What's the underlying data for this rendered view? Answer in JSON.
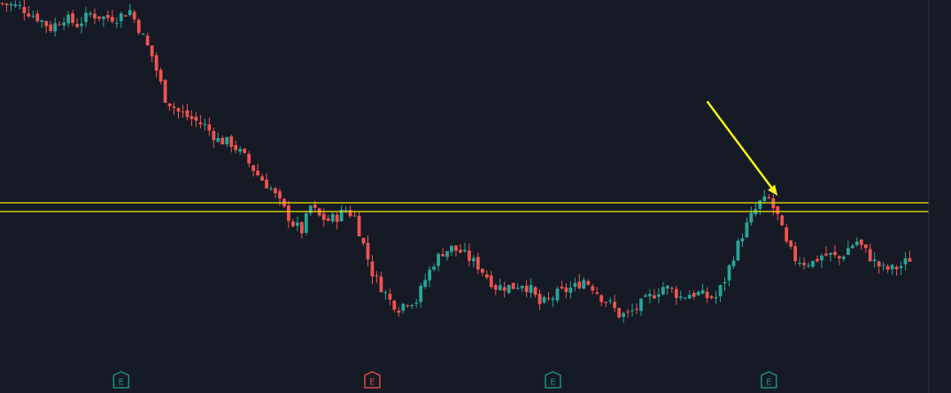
{
  "chart_data": {
    "type": "candlestick",
    "title": "",
    "xlabel": "",
    "ylabel": "",
    "grid": false,
    "y_range": [
      0,
      100
    ],
    "colors": {
      "up": "#26a69a",
      "down": "#ef5350",
      "background": "#161a25",
      "level_line": "#f2e60a",
      "arrow": "#f7f712",
      "earnings_positive": "#1e8c7c",
      "earnings_negative": "#d64a45",
      "right_border": "#2a2e39"
    },
    "price_waypoints": [
      [
        0,
        99
      ],
      [
        4,
        98
      ],
      [
        8,
        95
      ],
      [
        11,
        92
      ],
      [
        14,
        95
      ],
      [
        17,
        93
      ],
      [
        20,
        96
      ],
      [
        23,
        95
      ],
      [
        26,
        95
      ],
      [
        29,
        97
      ],
      [
        31,
        92
      ],
      [
        34,
        84
      ],
      [
        37,
        72
      ],
      [
        40,
        68
      ],
      [
        43,
        66
      ],
      [
        46,
        64
      ],
      [
        49,
        60
      ],
      [
        52,
        59
      ],
      [
        55,
        55
      ],
      [
        58,
        50
      ],
      [
        61,
        46
      ],
      [
        64,
        40
      ],
      [
        66,
        36
      ],
      [
        68,
        34
      ],
      [
        70,
        41
      ],
      [
        72,
        38
      ],
      [
        74,
        37
      ],
      [
        76,
        38
      ],
      [
        78,
        40
      ],
      [
        80,
        38
      ],
      [
        82,
        30
      ],
      [
        84,
        22
      ],
      [
        86,
        18
      ],
      [
        88,
        14
      ],
      [
        90,
        12
      ],
      [
        92,
        14
      ],
      [
        94,
        14
      ],
      [
        96,
        20
      ],
      [
        98,
        25
      ],
      [
        100,
        28
      ],
      [
        102,
        29
      ],
      [
        104,
        28
      ],
      [
        106,
        26
      ],
      [
        108,
        24
      ],
      [
        110,
        21
      ],
      [
        112,
        18
      ],
      [
        114,
        18
      ],
      [
        116,
        18
      ],
      [
        118,
        19
      ],
      [
        120,
        17
      ],
      [
        122,
        13
      ],
      [
        124,
        14
      ],
      [
        126,
        16
      ],
      [
        128,
        17
      ],
      [
        130,
        18
      ],
      [
        132,
        20
      ],
      [
        134,
        18
      ],
      [
        136,
        15
      ],
      [
        138,
        13
      ],
      [
        140,
        10
      ],
      [
        142,
        10
      ],
      [
        144,
        12
      ],
      [
        146,
        14
      ],
      [
        148,
        16
      ],
      [
        150,
        18
      ],
      [
        152,
        17
      ],
      [
        154,
        15
      ],
      [
        156,
        16
      ],
      [
        158,
        16
      ],
      [
        160,
        15
      ],
      [
        162,
        15
      ],
      [
        164,
        20
      ],
      [
        166,
        27
      ],
      [
        168,
        33
      ],
      [
        170,
        38
      ],
      [
        172,
        42
      ],
      [
        174,
        43
      ],
      [
        176,
        38
      ],
      [
        178,
        30
      ],
      [
        180,
        26
      ],
      [
        182,
        25
      ],
      [
        184,
        25
      ],
      [
        186,
        27
      ],
      [
        188,
        27
      ],
      [
        190,
        26
      ],
      [
        192,
        29
      ],
      [
        194,
        31
      ],
      [
        196,
        28
      ],
      [
        198,
        25
      ],
      [
        200,
        23
      ],
      [
        202,
        23
      ],
      [
        204,
        24
      ],
      [
        206,
        26
      ]
    ],
    "candle_count": 207,
    "horizontal_levels": [
      {
        "price": 42.0
      },
      {
        "price": 39.5
      }
    ],
    "earnings_markers": [
      {
        "label": "E",
        "bar": 27,
        "type": "positive"
      },
      {
        "label": "E",
        "bar": 84,
        "type": "negative"
      },
      {
        "label": "E",
        "bar": 125,
        "type": "positive"
      },
      {
        "label": "E",
        "bar": 174,
        "type": "positive"
      }
    ],
    "annotation_arrow": {
      "from": {
        "bar": 160,
        "price": 71
      },
      "to": {
        "bar": 176,
        "price": 44
      }
    }
  }
}
